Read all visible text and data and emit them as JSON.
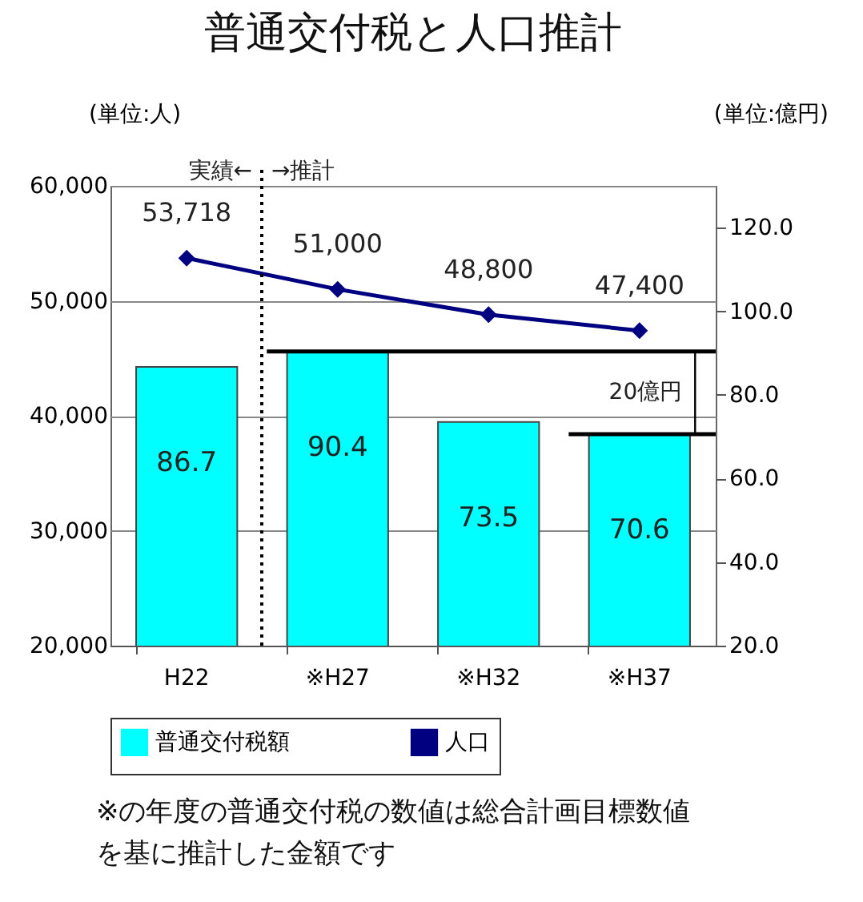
{
  "chart_data": {
    "type": "bar",
    "title": "普通交付税と人口推計",
    "ylabel": "(単位:人)",
    "y2label": "(単位:億円)",
    "annotations": [
      "実績←",
      "→推計",
      "20億円",
      "※の年度の普通交付税の数値は総合計画目標数値を基に推計した金額です"
    ],
    "categories": [
      "H22",
      "※H27",
      "※H32",
      "※H37"
    ],
    "series": [
      {
        "name": "普通交付税額",
        "type": "bar",
        "axis": "y2",
        "color": "#00ffff",
        "values": [
          86.7,
          90.4,
          73.5,
          70.6
        ]
      },
      {
        "name": "人口",
        "type": "line",
        "color": "#000080",
        "values": [
          53718,
          51000,
          48800,
          47400
        ],
        "value_labels": [
          "53,718",
          "51,000",
          "48,800",
          "47,400"
        ]
      }
    ],
    "ylim": [
      20000,
      60000
    ],
    "yticks": [
      {
        "value": 20000,
        "label": "20,000"
      },
      {
        "value": 30000,
        "label": "30,000"
      },
      {
        "value": 40000,
        "label": "40,000"
      },
      {
        "value": 50000,
        "label": "50,000"
      },
      {
        "value": 60000,
        "label": "60,000"
      }
    ],
    "y2lim": [
      20,
      130
    ],
    "y2ticks": [
      {
        "value": 20,
        "label": "20.0"
      },
      {
        "value": 40,
        "label": "40.0"
      },
      {
        "value": 60,
        "label": "60.0"
      },
      {
        "value": 80,
        "label": "80.0"
      },
      {
        "value": 100,
        "label": "100.0"
      },
      {
        "value": 120,
        "label": "120.0"
      }
    ],
    "ref_lines": [
      {
        "axis": "x",
        "value": "※H27",
        "line_style": "dotted",
        "color": "#000000"
      },
      {
        "axis": "y2",
        "value": 90.4,
        "color": "#000000"
      },
      {
        "axis": "y2",
        "value": 70.6,
        "color": "#000000"
      }
    ],
    "grid": "y",
    "legend": "bottom",
    "marker": "diamond",
    "data_labels": true
  }
}
